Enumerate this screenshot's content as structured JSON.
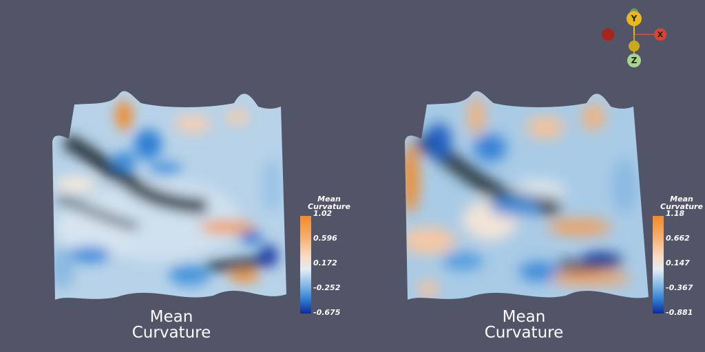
{
  "left_view": {
    "title_line1": "Mean",
    "title_line2": "Curvature",
    "legend": {
      "title_line1": "Mean",
      "title_line2": "Curvature",
      "ticks": [
        "1.02",
        "0.596",
        "0.172",
        "-0.252",
        "-0.675"
      ]
    }
  },
  "right_view": {
    "title_line1": "Mean",
    "title_line2": "Curvature",
    "legend": {
      "title_line1": "Mean",
      "title_line2": "Curvature",
      "ticks": [
        "1.18",
        "0.662",
        "0.147",
        "-0.367",
        "-0.881"
      ]
    }
  },
  "orientation_axes": {
    "x_label": "X",
    "y_label": "Y",
    "z_label": "Z"
  },
  "colors": {
    "background": "#525468",
    "high": "#f08a2c",
    "mid": "#e2ecf3",
    "low": "#102a9a",
    "axis_x": "#d9452f",
    "axis_y": "#e8b81c",
    "axis_z": "#a6d58e"
  }
}
